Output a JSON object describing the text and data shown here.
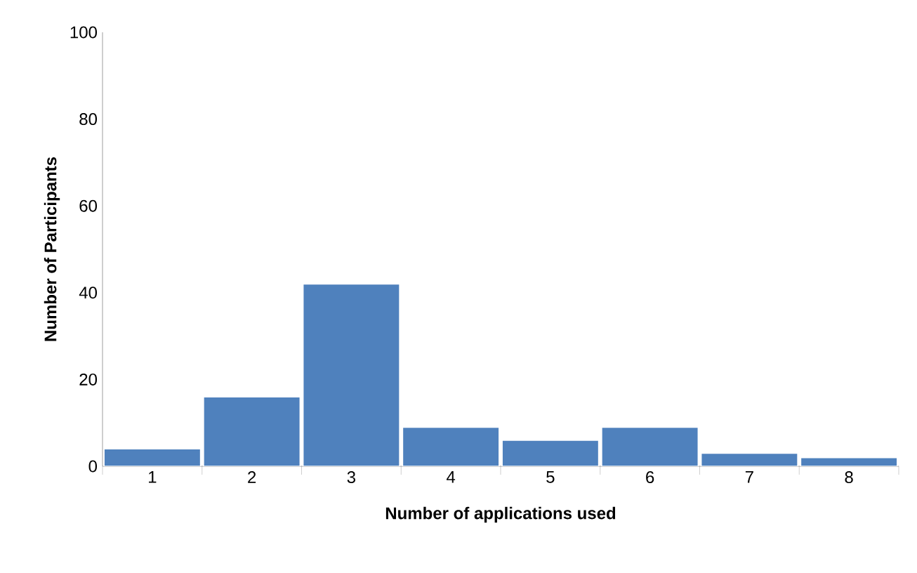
{
  "chart_data": {
    "type": "bar",
    "xlabel": "Number of applications used",
    "ylabel": "Number of Participants",
    "categories": [
      "1",
      "2",
      "3",
      "4",
      "5",
      "6",
      "7",
      "8"
    ],
    "values": [
      4,
      16,
      42,
      9,
      6,
      9,
      3,
      2
    ],
    "color": "#4f81bd",
    "ylim": [
      0,
      100
    ],
    "yticks": [
      0,
      20,
      40,
      60,
      80,
      100
    ],
    "grid": false
  }
}
